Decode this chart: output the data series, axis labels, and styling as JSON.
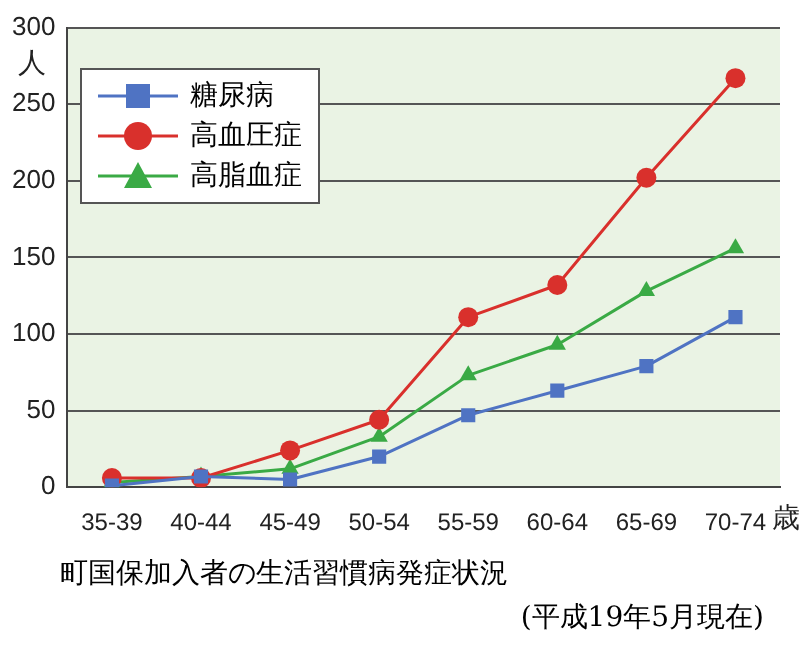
{
  "chart_data": {
    "type": "line",
    "title": "町国保加入者の生活習慣病発症状況",
    "annotations": [
      "(平成19年5月現在)"
    ],
    "ylabel": "人",
    "xlabel": "歳",
    "categories": [
      "35-39",
      "40-44",
      "45-49",
      "50-54",
      "55-59",
      "60-64",
      "65-69",
      "70-74"
    ],
    "series": [
      {
        "name": "糖尿病",
        "color": "#4f73c3",
        "marker": "square",
        "values": [
          1,
          7,
          5,
          20,
          47,
          63,
          79,
          111
        ]
      },
      {
        "name": "高血圧症",
        "color": "#d9302c",
        "marker": "circle",
        "values": [
          6,
          6,
          24,
          44,
          111,
          132,
          202,
          267
        ]
      },
      {
        "name": "高脂血症",
        "color": "#3aaa45",
        "marker": "triangle",
        "values": [
          3,
          7,
          12,
          33,
          73,
          93,
          128,
          156
        ]
      }
    ],
    "ylim": [
      0,
      300
    ],
    "yticks": [
      0,
      50,
      100,
      150,
      200,
      250,
      300
    ],
    "grid": "y",
    "legend": "top left"
  }
}
